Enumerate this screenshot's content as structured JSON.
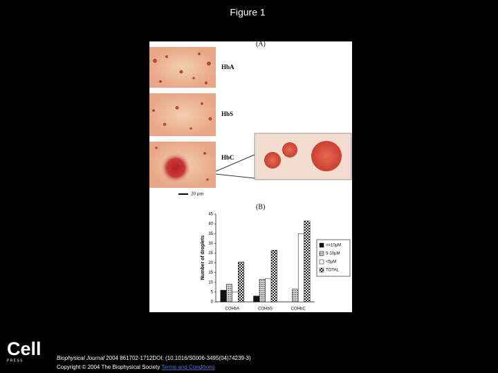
{
  "title": "Figure 1",
  "panel_a": {
    "label": "(A)",
    "images": [
      "HbA",
      "HbS",
      "HbC"
    ],
    "scale_bar": "20 µm"
  },
  "chart_data": {
    "type": "bar",
    "panel_label": "(B)",
    "ylabel": "Number of droplets",
    "categories": [
      "COHbA",
      "COHbS",
      "COHbC"
    ],
    "series": [
      {
        "name": ">=10µM",
        "color": "#111111",
        "pattern": "solid",
        "values": [
          6,
          3,
          0
        ]
      },
      {
        "name": "5-10µM",
        "color": "#555555",
        "pattern": "hatch",
        "values": [
          9,
          11.5,
          6.5
        ]
      },
      {
        "name": "<5µM",
        "color": "#ffffff",
        "pattern": "solid",
        "values": [
          5,
          12,
          35
        ]
      },
      {
        "name": "TOTAL",
        "color": "#222222",
        "pattern": "checker",
        "values": [
          20.5,
          26.5,
          41.5
        ]
      }
    ],
    "ylim": [
      0,
      45
    ],
    "yticks": [
      0,
      5,
      10,
      15,
      20,
      25,
      30,
      35,
      40,
      45
    ]
  },
  "footer": {
    "logo": "Cell",
    "logo_sub": "P R E S S",
    "journal": "Biophysical Journal",
    "citation": "2004 861702-1712DOI: (10.1016/S0006-3495(04)74239-3)",
    "copyright": "Copyright © 2004 The Biophysical Society",
    "link": "Terms and Conditions"
  }
}
